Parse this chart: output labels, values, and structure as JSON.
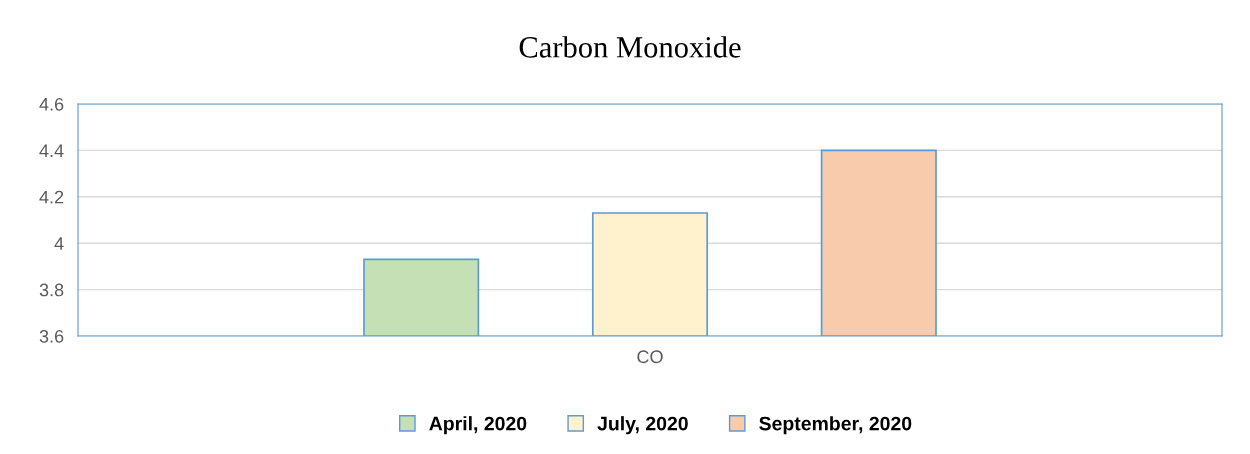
{
  "chart_data": {
    "type": "bar",
    "title": "Carbon Monoxide",
    "categories": [
      "CO"
    ],
    "series": [
      {
        "name": "April, 2020",
        "color": "#c5e0b4",
        "values": [
          3.93
        ]
      },
      {
        "name": "July, 2020",
        "color": "#fff2cc",
        "values": [
          4.13
        ]
      },
      {
        "name": "September, 2020",
        "color": "#f8cbad",
        "values": [
          4.4
        ]
      }
    ],
    "ylim": [
      3.6,
      4.6
    ],
    "yticks": [
      3.6,
      3.8,
      4,
      4.2,
      4.4,
      4.6
    ],
    "grid": "y",
    "legend": "bottom"
  }
}
